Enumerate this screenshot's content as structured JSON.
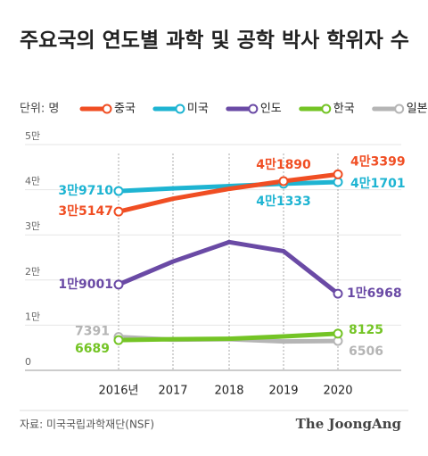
{
  "chart_data": {
    "type": "line",
    "title": "주요국의 연도별 과학 및 공학 박사 학위자 수",
    "unit": "단위: 명",
    "source": "자료: 미국국립과학재단(NSF)",
    "brand": "The JoongAng",
    "legend": "top-left",
    "grid": true,
    "categories": [
      "2016년",
      "2017",
      "2018",
      "2019",
      "2020"
    ],
    "ylim": [
      0,
      50000
    ],
    "yticks": [
      0,
      {
        "value": 10000,
        "label": "1만"
      },
      {
        "value": 20000,
        "label": "2만"
      },
      {
        "value": 30000,
        "label": "3만"
      },
      {
        "value": 40000,
        "label": "4만"
      },
      {
        "value": 50000,
        "label": "5만"
      }
    ],
    "series": [
      {
        "name": "중국",
        "color": "#f04e23",
        "values": [
          35147,
          38000,
          40200,
          41890,
          43399
        ],
        "value_labels": [
          "3만5147",
          null,
          null,
          "4만1890",
          "4만3399"
        ]
      },
      {
        "name": "미국",
        "color": "#1eb4d2",
        "values": [
          39710,
          40300,
          40800,
          41333,
          41701
        ],
        "value_labels": [
          "3만9710",
          null,
          null,
          "4만1333",
          "4만1701"
        ]
      },
      {
        "name": "인도",
        "color": "#6a4aa5",
        "values": [
          19001,
          24100,
          28400,
          26400,
          16968
        ],
        "value_labels": [
          "1만9001",
          null,
          null,
          null,
          "1만6968"
        ]
      },
      {
        "name": "한국",
        "color": "#74c425",
        "values": [
          6689,
          6900,
          7000,
          7500,
          8125
        ],
        "value_labels": [
          "6689",
          null,
          null,
          null,
          "8125"
        ]
      },
      {
        "name": "일본",
        "color": "#b5b5b5",
        "values": [
          7391,
          6800,
          6900,
          6400,
          6506
        ],
        "value_labels": [
          "7391",
          null,
          null,
          null,
          "6506"
        ]
      }
    ]
  }
}
